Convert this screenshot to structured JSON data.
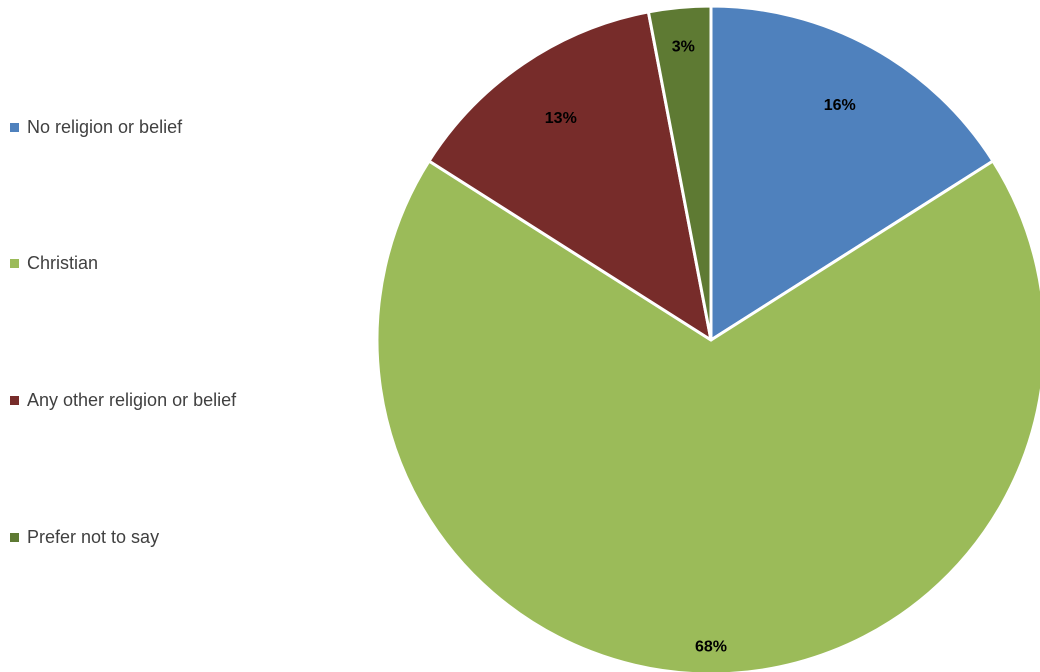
{
  "chart_data": {
    "type": "pie",
    "title": "",
    "categories": [
      "No religion or belief",
      "Christian",
      "Any other religion or belief",
      "Prefer not to say"
    ],
    "values": [
      16,
      68,
      13,
      3
    ],
    "value_labels": [
      "16%",
      "68%",
      "13%",
      "3%"
    ],
    "colors": [
      "#4f81bd",
      "#9bbb59",
      "#772c2a",
      "#5e7a33"
    ],
    "start_angle": "12 o'clock",
    "direction": "clockwise",
    "legend_position": "left"
  }
}
